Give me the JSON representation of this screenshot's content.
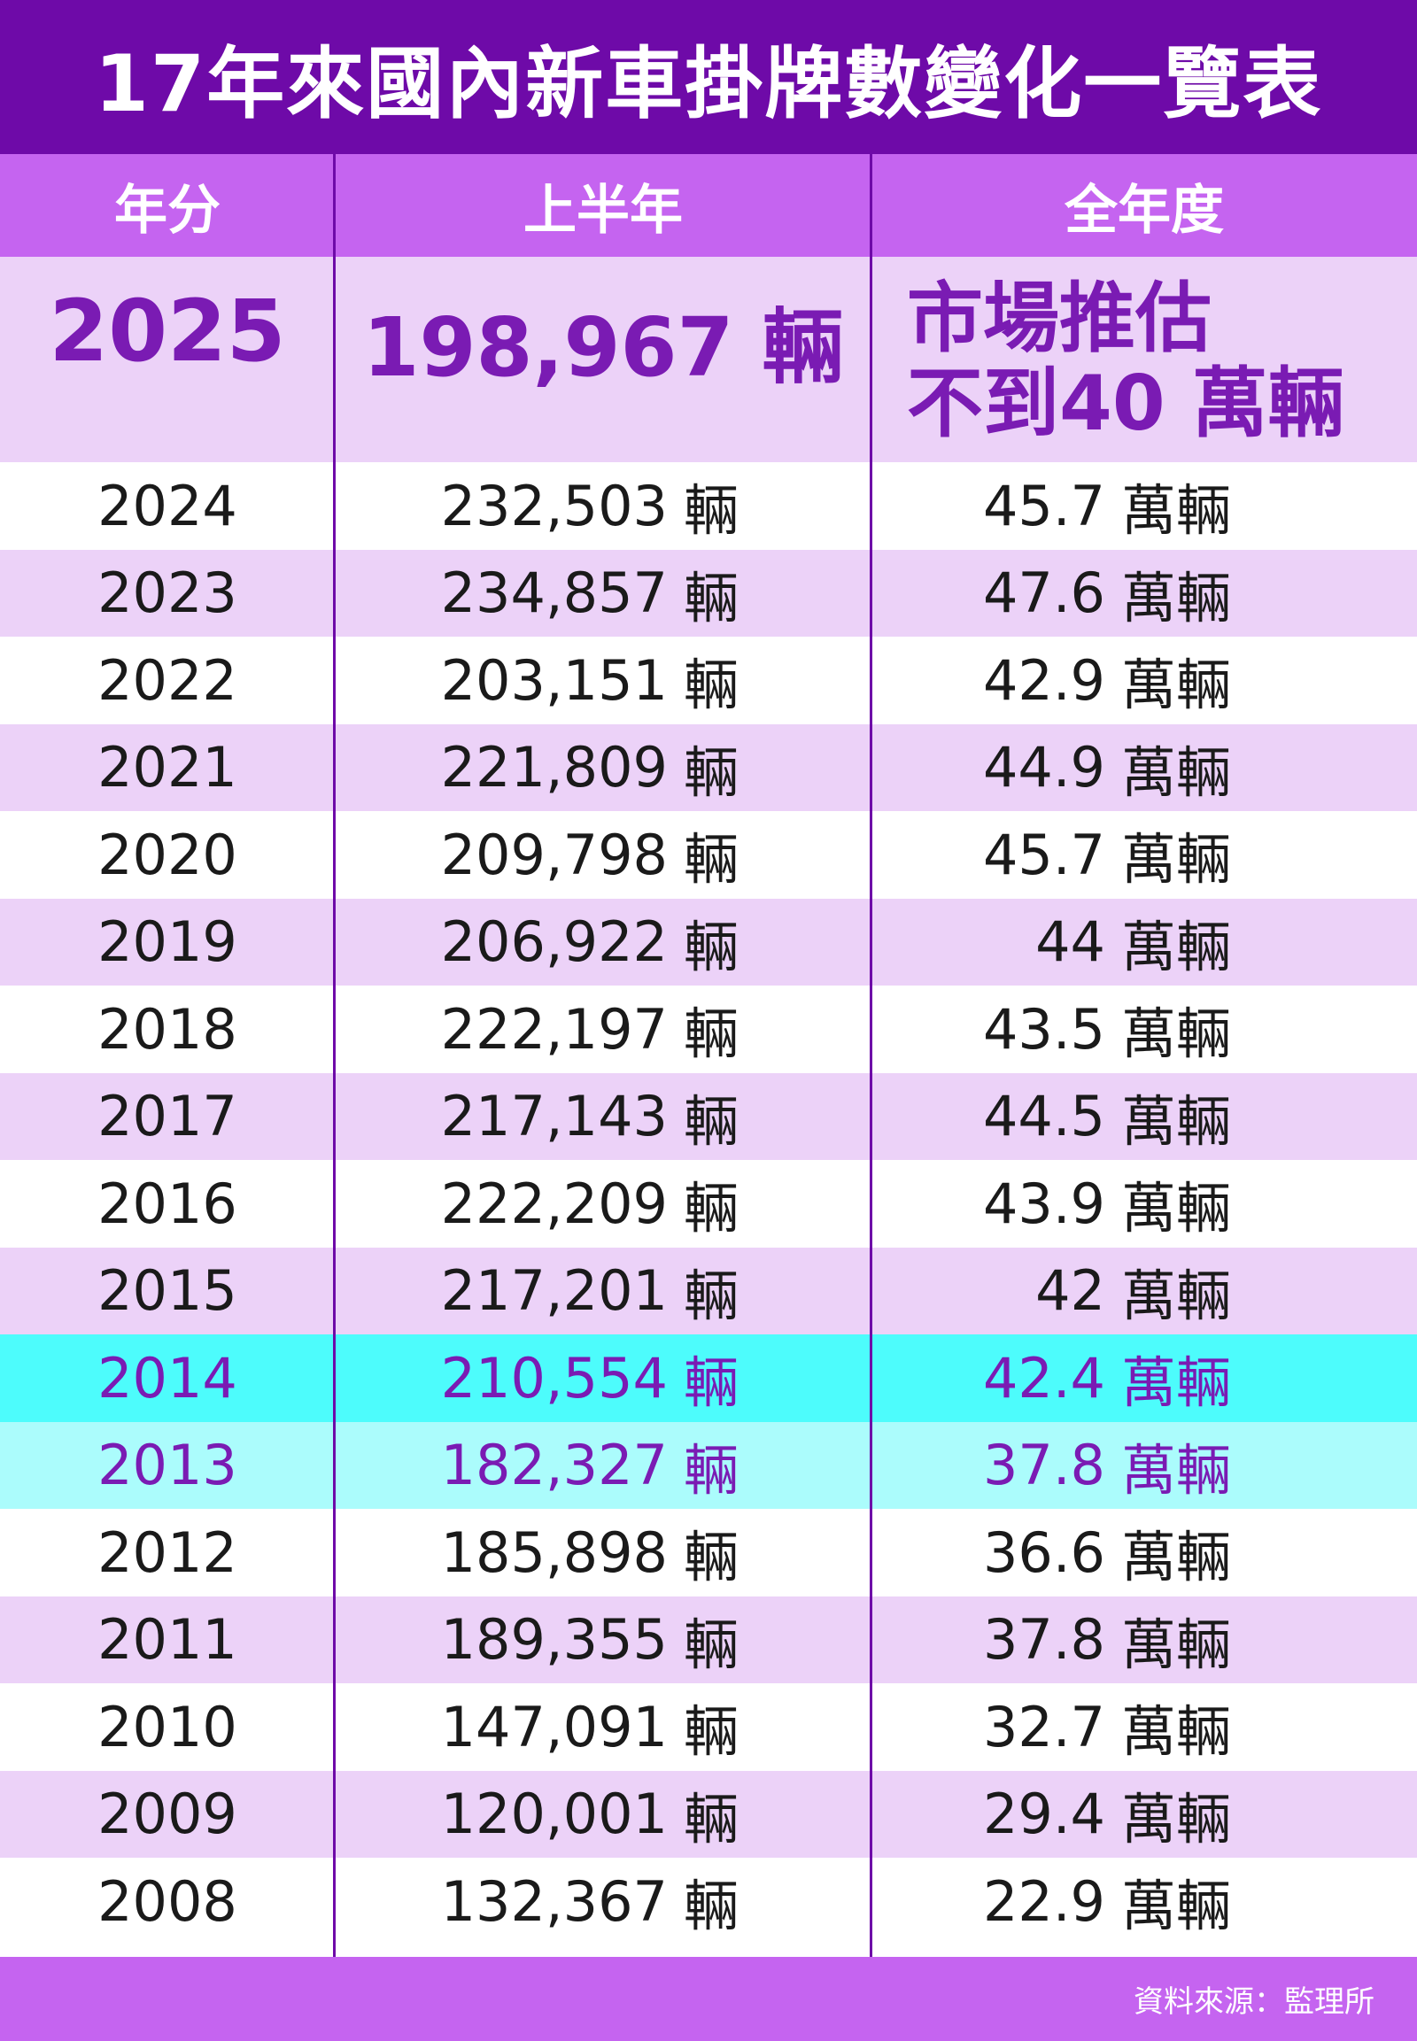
{
  "title": "17年來國內新車掛牌數變化一覽表",
  "headers": {
    "year": "年分",
    "first_half": "上半年",
    "full_year": "全年度"
  },
  "featured": {
    "year": "2025",
    "first_half": "198,967 輛",
    "full_year_line1": "市場推估",
    "full_year_line2": "不到40 萬輛"
  },
  "units": {
    "first_half": "輛",
    "full_year": "萬輛"
  },
  "rows": [
    {
      "year": "2024",
      "first_half": "232,503",
      "full_year": "45.7"
    },
    {
      "year": "2023",
      "first_half": "234,857",
      "full_year": "47.6"
    },
    {
      "year": "2022",
      "first_half": "203,151",
      "full_year": "42.9"
    },
    {
      "year": "2021",
      "first_half": "221,809",
      "full_year": "44.9"
    },
    {
      "year": "2020",
      "first_half": "209,798",
      "full_year": "45.7"
    },
    {
      "year": "2019",
      "first_half": "206,922",
      "full_year": "44"
    },
    {
      "year": "2018",
      "first_half": "222,197",
      "full_year": "43.5"
    },
    {
      "year": "2017",
      "first_half": "217,143",
      "full_year": "44.5"
    },
    {
      "year": "2016",
      "first_half": "222,209",
      "full_year": "43.9"
    },
    {
      "year": "2015",
      "first_half": "217,201",
      "full_year": "42"
    },
    {
      "year": "2014",
      "first_half": "210,554",
      "full_year": "42.4"
    },
    {
      "year": "2013",
      "first_half": "182,327",
      "full_year": "37.8"
    },
    {
      "year": "2012",
      "first_half": "185,898",
      "full_year": "36.6"
    },
    {
      "year": "2011",
      "first_half": "189,355",
      "full_year": "37.8"
    },
    {
      "year": "2010",
      "first_half": "147,091",
      "full_year": "32.7"
    },
    {
      "year": "2009",
      "first_half": "120,001",
      "full_year": "29.4"
    },
    {
      "year": "2008",
      "first_half": "132,367",
      "full_year": "22.9"
    }
  ],
  "footer": {
    "source": "資料來源：監理所"
  },
  "colors": {
    "title_bg": "#6e0aa8",
    "header_bg": "#c564f0",
    "row_alt_bg": "#ecd2f8",
    "highlight_2014": "#4dfcfc",
    "highlight_2013": "#abfcfc",
    "accent_text": "#7a1bb3"
  }
}
